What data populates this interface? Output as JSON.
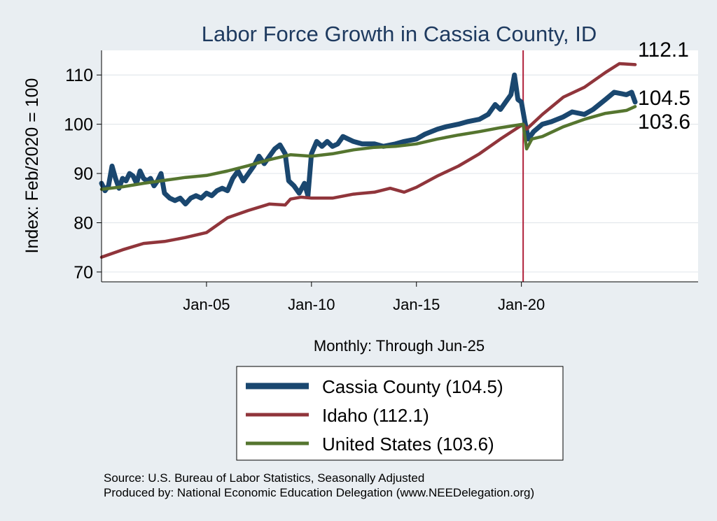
{
  "chart_data": {
    "type": "line",
    "title": "Labor Force Growth in Cassia  County, ID",
    "ylabel": "Index: Feb/2020 = 100",
    "xlabel": "Monthly: Through Jun-25",
    "ylim": [
      68,
      115
    ],
    "yticks": [
      70,
      80,
      90,
      100,
      110
    ],
    "xlim": [
      "2000-01",
      "2028-06"
    ],
    "xticks": [
      {
        "x": "2005-01",
        "label": "Jan-05"
      },
      {
        "x": "2010-01",
        "label": "Jan-10"
      },
      {
        "x": "2015-01",
        "label": "Jan-15"
      },
      {
        "x": "2020-01",
        "label": "Jan-20"
      }
    ],
    "reference_line": {
      "x": "2020-02",
      "color": "#b0203a"
    },
    "grid": true,
    "legend_position": "bottom",
    "series": [
      {
        "name": "Cassia  County (104.5)",
        "color": "#1a476f",
        "end_label": "104.5",
        "points": [
          [
            "2000-01",
            88.0
          ],
          [
            "2000-03",
            86.5
          ],
          [
            "2000-05",
            87.5
          ],
          [
            "2000-07",
            91.5
          ],
          [
            "2000-09",
            89.0
          ],
          [
            "2000-11",
            87.0
          ],
          [
            "2001-01",
            89.0
          ],
          [
            "2001-03",
            88.5
          ],
          [
            "2001-05",
            90.0
          ],
          [
            "2001-07",
            89.5
          ],
          [
            "2001-09",
            88.0
          ],
          [
            "2001-11",
            90.5
          ],
          [
            "2002-01",
            89.0
          ],
          [
            "2002-03",
            88.5
          ],
          [
            "2002-05",
            89.0
          ],
          [
            "2002-07",
            87.5
          ],
          [
            "2002-09",
            88.5
          ],
          [
            "2002-11",
            90.0
          ],
          [
            "2003-01",
            86.0
          ],
          [
            "2003-04",
            85.0
          ],
          [
            "2003-07",
            84.5
          ],
          [
            "2003-10",
            85.0
          ],
          [
            "2004-01",
            83.8
          ],
          [
            "2004-04",
            85.0
          ],
          [
            "2004-07",
            85.5
          ],
          [
            "2004-10",
            85.0
          ],
          [
            "2005-01",
            86.0
          ],
          [
            "2005-04",
            85.5
          ],
          [
            "2005-07",
            86.5
          ],
          [
            "2005-10",
            87.0
          ],
          [
            "2006-01",
            86.5
          ],
          [
            "2006-04",
            89.0
          ],
          [
            "2006-07",
            90.5
          ],
          [
            "2006-10",
            88.5
          ],
          [
            "2007-01",
            90.0
          ],
          [
            "2007-04",
            91.5
          ],
          [
            "2007-07",
            93.5
          ],
          [
            "2007-10",
            92.0
          ],
          [
            "2008-01",
            93.5
          ],
          [
            "2008-04",
            95.0
          ],
          [
            "2008-07",
            95.8
          ],
          [
            "2008-10",
            94.0
          ],
          [
            "2008-12",
            88.5
          ],
          [
            "2009-03",
            87.5
          ],
          [
            "2009-06",
            86.0
          ],
          [
            "2009-09",
            88.0
          ],
          [
            "2009-11",
            85.5
          ],
          [
            "2010-01",
            94.0
          ],
          [
            "2010-04",
            96.5
          ],
          [
            "2010-07",
            95.5
          ],
          [
            "2010-10",
            96.5
          ],
          [
            "2011-01",
            95.5
          ],
          [
            "2011-04",
            96.0
          ],
          [
            "2011-07",
            97.5
          ],
          [
            "2011-10",
            97.0
          ],
          [
            "2012-01",
            96.5
          ],
          [
            "2012-06",
            96.0
          ],
          [
            "2013-01",
            96.0
          ],
          [
            "2013-06",
            95.5
          ],
          [
            "2014-01",
            96.0
          ],
          [
            "2014-06",
            96.5
          ],
          [
            "2015-01",
            97.0
          ],
          [
            "2015-06",
            98.0
          ],
          [
            "2016-01",
            99.0
          ],
          [
            "2016-06",
            99.5
          ],
          [
            "2017-01",
            100.0
          ],
          [
            "2017-06",
            100.5
          ],
          [
            "2018-01",
            101.0
          ],
          [
            "2018-06",
            102.0
          ],
          [
            "2018-10",
            104.0
          ],
          [
            "2019-01",
            103.0
          ],
          [
            "2019-04",
            104.5
          ],
          [
            "2019-07",
            106.0
          ],
          [
            "2019-09",
            110.0
          ],
          [
            "2019-11",
            105.0
          ],
          [
            "2020-01",
            104.5
          ],
          [
            "2020-03",
            100.5
          ],
          [
            "2020-05",
            97.0
          ],
          [
            "2020-08",
            98.5
          ],
          [
            "2021-01",
            100.0
          ],
          [
            "2021-06",
            100.5
          ],
          [
            "2022-01",
            101.5
          ],
          [
            "2022-06",
            102.5
          ],
          [
            "2023-01",
            102.0
          ],
          [
            "2023-06",
            103.0
          ],
          [
            "2024-01",
            105.0
          ],
          [
            "2024-06",
            106.5
          ],
          [
            "2025-01",
            106.0
          ],
          [
            "2025-04",
            106.5
          ],
          [
            "2025-06",
            104.5
          ]
        ]
      },
      {
        "name": "Idaho (112.1)",
        "color": "#90353b",
        "end_label": "112.1",
        "points": [
          [
            "2000-01",
            73.0
          ],
          [
            "2001-01",
            74.5
          ],
          [
            "2002-01",
            75.8
          ],
          [
            "2003-01",
            76.2
          ],
          [
            "2004-01",
            77.0
          ],
          [
            "2005-01",
            78.0
          ],
          [
            "2006-01",
            81.0
          ],
          [
            "2007-01",
            82.5
          ],
          [
            "2008-01",
            83.8
          ],
          [
            "2008-10",
            83.6
          ],
          [
            "2009-01",
            84.8
          ],
          [
            "2009-07",
            85.2
          ],
          [
            "2010-01",
            85.0
          ],
          [
            "2011-01",
            85.0
          ],
          [
            "2012-01",
            85.8
          ],
          [
            "2013-01",
            86.2
          ],
          [
            "2013-10",
            87.0
          ],
          [
            "2014-06",
            86.2
          ],
          [
            "2015-01",
            87.2
          ],
          [
            "2016-01",
            89.5
          ],
          [
            "2017-01",
            91.5
          ],
          [
            "2018-01",
            94.0
          ],
          [
            "2019-01",
            97.0
          ],
          [
            "2020-02",
            100.0
          ],
          [
            "2020-04",
            99.0
          ],
          [
            "2021-01",
            102.0
          ],
          [
            "2022-01",
            105.5
          ],
          [
            "2023-01",
            107.5
          ],
          [
            "2024-01",
            110.5
          ],
          [
            "2024-09",
            112.3
          ],
          [
            "2025-06",
            112.1
          ]
        ]
      },
      {
        "name": "United States (103.6)",
        "color": "#55752f",
        "end_label": "103.6",
        "points": [
          [
            "2000-01",
            86.8
          ],
          [
            "2001-01",
            87.3
          ],
          [
            "2002-01",
            88.0
          ],
          [
            "2003-01",
            88.6
          ],
          [
            "2004-01",
            89.2
          ],
          [
            "2005-01",
            89.6
          ],
          [
            "2006-01",
            90.5
          ],
          [
            "2007-01",
            91.6
          ],
          [
            "2008-01",
            92.8
          ],
          [
            "2009-01",
            93.8
          ],
          [
            "2010-01",
            93.5
          ],
          [
            "2011-01",
            94.0
          ],
          [
            "2012-01",
            94.8
          ],
          [
            "2013-01",
            95.3
          ],
          [
            "2014-01",
            95.5
          ],
          [
            "2015-01",
            96.0
          ],
          [
            "2016-01",
            97.0
          ],
          [
            "2017-01",
            97.8
          ],
          [
            "2018-01",
            98.5
          ],
          [
            "2019-01",
            99.3
          ],
          [
            "2020-02",
            100.0
          ],
          [
            "2020-04",
            95.0
          ],
          [
            "2020-07",
            97.0
          ],
          [
            "2021-01",
            97.5
          ],
          [
            "2022-01",
            99.5
          ],
          [
            "2023-01",
            101.0
          ],
          [
            "2024-01",
            102.2
          ],
          [
            "2025-01",
            102.8
          ],
          [
            "2025-06",
            103.6
          ]
        ]
      }
    ]
  },
  "footer": {
    "line1": "Source: U.S. Bureau of Labor Statistics, Seasonally Adjusted",
    "line2": "Produced by: National Economic Education Delegation (www.NEEDelegation.org)"
  }
}
